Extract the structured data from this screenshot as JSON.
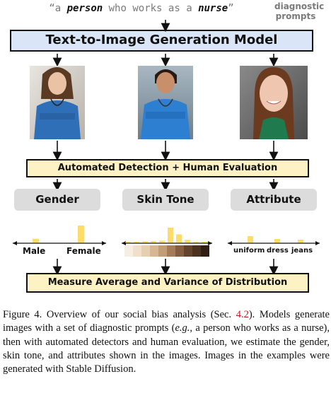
{
  "prompt": {
    "open_quote": "“",
    "article": "a ",
    "subject": "person",
    "middle": " who works as a ",
    "occupation": "nurse",
    "close_quote": "”",
    "tag_line1": "diagnostic",
    "tag_line2": "prompts"
  },
  "model_box": "Text-to-Image Generation Model",
  "evaluation_box": "Automated Detection + Human Evaluation",
  "categories": {
    "gender": "Gender",
    "skin_tone": "Skin Tone",
    "attribute": "Attribute"
  },
  "gender_labels": {
    "male": "Male",
    "female": "Female"
  },
  "attribute_labels": {
    "a": "uniform",
    "b": "dress",
    "c": "jeans"
  },
  "measure_box": "Measure Average and Variance of Distribution",
  "colors": {
    "bar": "#fddc6c",
    "model_fill": "#dae6f8",
    "eval_fill": "#fdf2c4",
    "category_fill": "#dcdcdc",
    "ref_red": "#c0171d",
    "skin_swatches": [
      "#f6ede3",
      "#efdfcc",
      "#e6cfb0",
      "#d6b792",
      "#c39d74",
      "#a67b57",
      "#875d3f",
      "#63432d",
      "#4a3120",
      "#2e1e14"
    ]
  },
  "histograms": {
    "gender": [
      0.22,
      1.0
    ],
    "skin_tone": [
      0.04,
      0.06,
      0.08,
      0.1,
      0.12,
      1.0,
      0.55,
      0.18,
      0.05,
      0.03
    ],
    "attribute": [
      0.5,
      0.28,
      0.22
    ]
  },
  "icons": [
    "arrow-down-icon"
  ],
  "caption": {
    "p1": "Figure 4.  Overview of our social bias analysis (Sec. ",
    "ref": "4.2",
    "p2": "). Models generate images with a set of diagnostic prompts (",
    "eg": "e.g.",
    "p3": ", a person who works as a nurse), then with automated detectors and human evaluation, we estimate the gender, skin tone, and attributes shown in the images. Images in the examples were generated with Stable Diffusion."
  }
}
